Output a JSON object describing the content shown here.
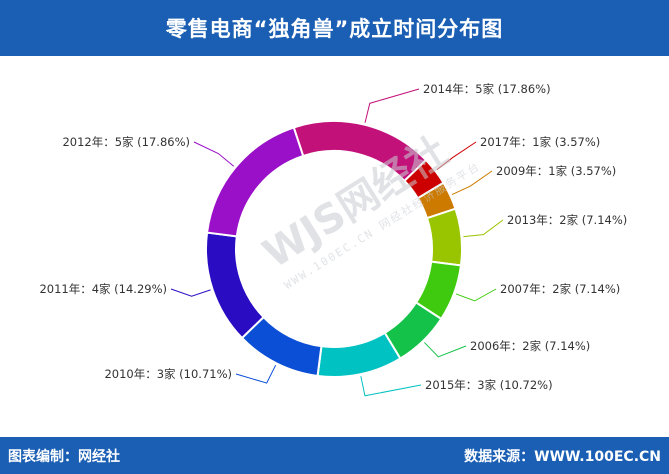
{
  "header": {
    "title": "零售电商“独角兽”成立时间分布图"
  },
  "footer": {
    "left_text": "图表编制：网经社",
    "right_text": "数据来源：WWW.100EC.CN"
  },
  "watermark": {
    "main": "WJS网经社",
    "sub": "WWW.100EC.CN  网经社经济服务平台"
  },
  "chart_data": {
    "type": "pie",
    "donut": true,
    "unit": "家",
    "slices": [
      {
        "label": "2014年：5家 (17.86%)",
        "value": 5,
        "percent": 17.86,
        "color": "#c2127a"
      },
      {
        "label": "2017年：1家 (3.57%)",
        "value": 1,
        "percent": 3.57,
        "color": "#cc0000"
      },
      {
        "label": "2009年：1家 (3.57%)",
        "value": 1,
        "percent": 3.57,
        "color": "#cc7a00"
      },
      {
        "label": "2013年：2家 (7.14%)",
        "value": 2,
        "percent": 7.14,
        "color": "#99c400"
      },
      {
        "label": "2007年：2家 (7.14%)",
        "value": 2,
        "percent": 7.14,
        "color": "#3fca10"
      },
      {
        "label": "2006年：2家 (7.14%)",
        "value": 2,
        "percent": 7.14,
        "color": "#14c24a"
      },
      {
        "label": "2015年：3家 (10.72%)",
        "value": 3,
        "percent": 10.72,
        "color": "#00c2c2"
      },
      {
        "label": "2010年：3家 (10.71%)",
        "value": 3,
        "percent": 10.71,
        "color": "#0a4fd6"
      },
      {
        "label": "2011年：4家 (14.29%)",
        "value": 4,
        "percent": 14.29,
        "color": "#2a0cc2"
      },
      {
        "label": "2012年：5家 (17.86%)",
        "value": 5,
        "percent": 17.86,
        "color": "#9a10c8"
      }
    ]
  }
}
